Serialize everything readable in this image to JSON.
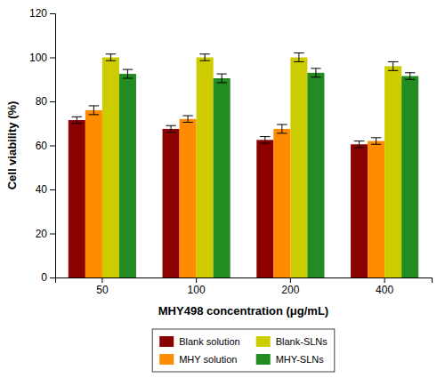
{
  "chart_data": {
    "type": "bar",
    "categories": [
      "50",
      "100",
      "200",
      "400"
    ],
    "series": [
      {
        "name": "Blank solution",
        "color": "#8B0000",
        "values": [
          71.5,
          67.5,
          62.5,
          60.5
        ],
        "errors": [
          1.5,
          1.5,
          1.5,
          1.5
        ]
      },
      {
        "name": "MHY solution",
        "color": "#FF8C00",
        "values": [
          76.0,
          72.0,
          67.5,
          62.0
        ],
        "errors": [
          2.0,
          1.5,
          2.0,
          1.5
        ]
      },
      {
        "name": "Blank-SLNs",
        "color": "#CCCC00",
        "values": [
          100.0,
          100.0,
          100.0,
          96.0
        ],
        "errors": [
          1.5,
          1.5,
          2.0,
          2.0
        ]
      },
      {
        "name": "MHY-SLNs",
        "color": "#228B22",
        "values": [
          92.5,
          90.5,
          93.0,
          91.5
        ],
        "errors": [
          2.0,
          2.0,
          2.0,
          1.5
        ]
      }
    ],
    "xlabel": "MHY498 concentration (μg/mL)",
    "ylabel": "Cell viability (%)",
    "ylim": [
      0,
      120
    ],
    "yticks": [
      0,
      20,
      40,
      60,
      80,
      100,
      120
    ],
    "grid": false,
    "legend": "bottom"
  }
}
